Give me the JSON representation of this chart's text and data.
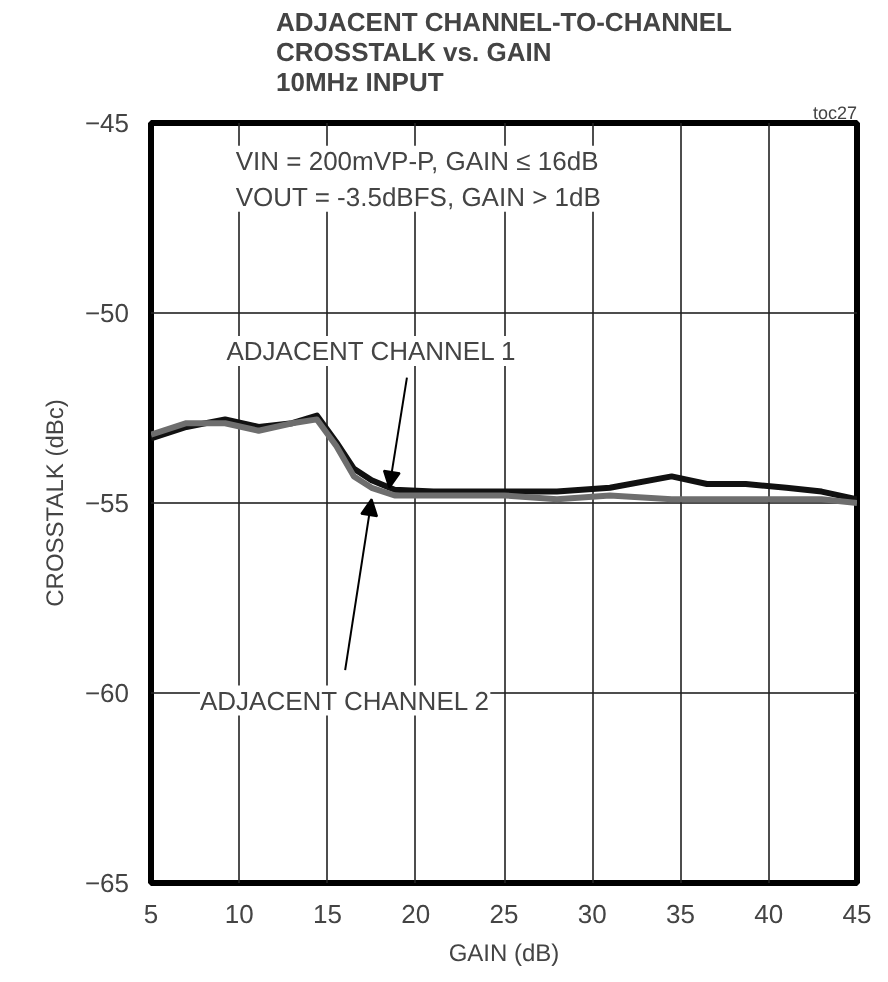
{
  "chart_data": {
    "type": "line",
    "title": "ADJACENT CHANNEL-TO-CHANNEL\nCROSSTALK vs. GAIN\n10MHz INPUT",
    "xlabel": "GAIN (dB)",
    "ylabel": "CROSSTALK (dBc)",
    "xlim": [
      5,
      45
    ],
    "ylim": [
      -65,
      -45
    ],
    "xticks": [
      5,
      10,
      15,
      20,
      25,
      30,
      35,
      40,
      45
    ],
    "yticks": [
      -65,
      -60,
      -55,
      -50,
      -45
    ],
    "grid": true,
    "line_style": "solid",
    "marker": "none",
    "series": [
      {
        "color": "#111111",
        "x": [
          5,
          7,
          9.2,
          11.1,
          13,
          14.4,
          15.5,
          16.5,
          17.5,
          18.8,
          21,
          25,
          28,
          31,
          34.5,
          36.5,
          38.7,
          41,
          43,
          45
        ],
        "values": [
          -53.3,
          -53.0,
          -52.8,
          -53.0,
          -52.9,
          -52.7,
          -53.4,
          -54.1,
          -54.4,
          -54.65,
          -54.7,
          -54.7,
          -54.7,
          -54.6,
          -54.3,
          -54.5,
          -54.5,
          -54.6,
          -54.7,
          -54.9
        ]
      },
      {
        "color": "#6e6e6e",
        "x": [
          5,
          7,
          9.2,
          11.1,
          13,
          14.4,
          15.5,
          16.5,
          17.5,
          18.8,
          21,
          25,
          28,
          31,
          34.5,
          36.5,
          38.7,
          41,
          43,
          45
        ],
        "values": [
          -53.2,
          -52.9,
          -52.9,
          -53.1,
          -52.9,
          -52.8,
          -53.5,
          -54.3,
          -54.6,
          -54.8,
          -54.8,
          -54.8,
          -54.9,
          -54.8,
          -54.9,
          -54.9,
          -54.9,
          -54.9,
          -54.9,
          -55.0
        ]
      }
    ],
    "annotations": [
      "VIN = 200mVP-P, GAIN ≤ 16dB\nVOUT = -3.5dBFS, GAIN > 1dB",
      "toc27",
      {
        "text": "ADJACENT CHANNEL 1",
        "x": 18.5,
        "y": -54.6
      },
      {
        "text": "ADJACENT CHANNEL 2",
        "x": 17.5,
        "y": -54.9
      }
    ]
  }
}
